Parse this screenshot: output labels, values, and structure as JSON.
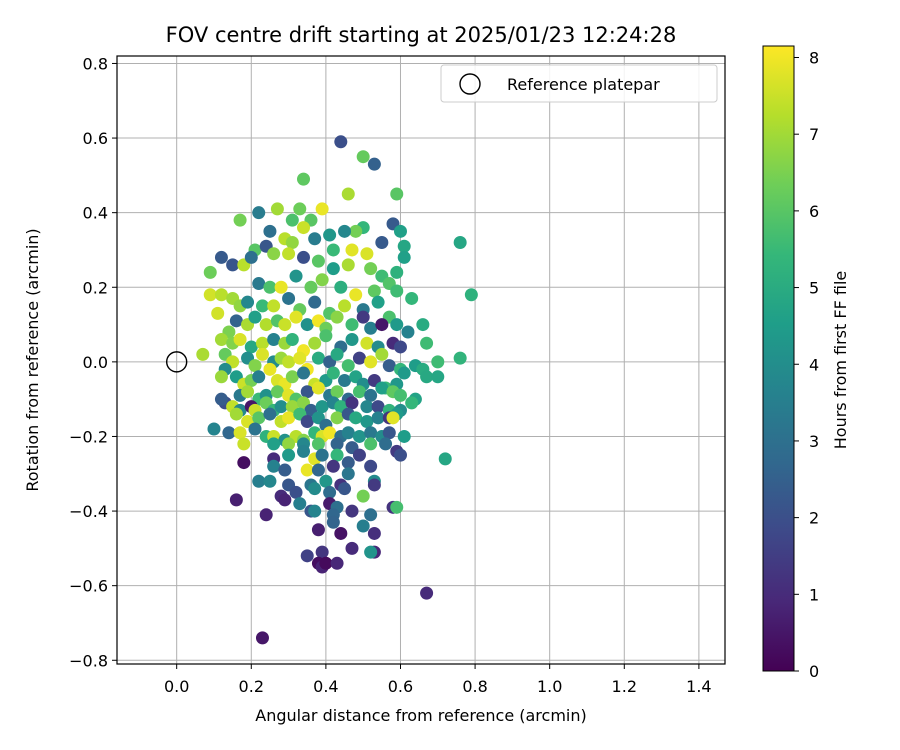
{
  "chart_data": {
    "type": "scatter",
    "title": "FOV centre drift starting at 2025/01/23 12:24:28",
    "xlabel": "Angular distance from reference (arcmin)",
    "ylabel": "Rotation from reference (arcmin)",
    "xlim": [
      -0.16,
      1.47
    ],
    "ylim": [
      -0.81,
      0.82
    ],
    "xticks": [
      "0.0",
      "0.2",
      "0.4",
      "0.6",
      "0.8",
      "1.0",
      "1.2",
      "1.4"
    ],
    "xtick_values": [
      0.0,
      0.2,
      0.4,
      0.6,
      0.8,
      1.0,
      1.2,
      1.4
    ],
    "yticks": [
      "0.8",
      "0.6",
      "0.4",
      "0.2",
      "0.0",
      "−0.2",
      "−0.4",
      "−0.6",
      "−0.8"
    ],
    "ytick_values": [
      0.8,
      0.6,
      0.4,
      0.2,
      0.0,
      -0.2,
      -0.4,
      -0.6,
      -0.8
    ],
    "grid": true,
    "legend": {
      "placement": "upper-right",
      "entries": [
        {
          "label": "Reference platepar",
          "marker": "open-circle",
          "x": 0.0,
          "y": 0.0
        }
      ]
    },
    "colorbar": {
      "label": "Hours from first FF file",
      "colormap": "viridis",
      "range": [
        0,
        8.15
      ],
      "ticks": [
        "0",
        "1",
        "2",
        "3",
        "4",
        "5",
        "6",
        "7",
        "8"
      ],
      "tick_values": [
        0,
        1,
        2,
        3,
        4,
        5,
        6,
        7,
        8
      ]
    },
    "colors": {
      "viridis_stops": [
        "#440154",
        "#482878",
        "#3e4989",
        "#31688e",
        "#26828e",
        "#1f9e89",
        "#35b779",
        "#6ece58",
        "#b5de2b",
        "#fde725"
      ],
      "grid": "#b0b0b0",
      "axes": "#000000"
    },
    "points": [
      [
        0.44,
        0.59,
        2.0
      ],
      [
        0.5,
        0.55,
        6.2
      ],
      [
        0.53,
        0.53,
        2.5
      ],
      [
        0.46,
        0.45,
        7.1
      ],
      [
        0.59,
        0.45,
        6.0
      ],
      [
        0.34,
        0.49,
        6.1
      ],
      [
        0.22,
        0.4,
        3.4
      ],
      [
        0.27,
        0.41,
        7.0
      ],
      [
        0.33,
        0.41,
        6.3
      ],
      [
        0.39,
        0.41,
        7.9
      ],
      [
        0.36,
        0.38,
        6.0
      ],
      [
        0.31,
        0.38,
        5.8
      ],
      [
        0.17,
        0.38,
        6.4
      ],
      [
        0.58,
        0.37,
        2.3
      ],
      [
        0.5,
        0.36,
        5.4
      ],
      [
        0.48,
        0.35,
        6.4
      ],
      [
        0.45,
        0.35,
        3.8
      ],
      [
        0.34,
        0.36,
        7.5
      ],
      [
        0.41,
        0.34,
        4.3
      ],
      [
        0.6,
        0.35,
        4.6
      ],
      [
        0.21,
        0.3,
        6.0
      ],
      [
        0.24,
        0.31,
        2.2
      ],
      [
        0.25,
        0.35,
        3.0
      ],
      [
        0.29,
        0.33,
        7.3
      ],
      [
        0.31,
        0.32,
        6.8
      ],
      [
        0.37,
        0.33,
        3.4
      ],
      [
        0.42,
        0.3,
        5.5
      ],
      [
        0.47,
        0.3,
        7.8
      ],
      [
        0.51,
        0.29,
        7.7
      ],
      [
        0.55,
        0.32,
        2.3
      ],
      [
        0.61,
        0.31,
        4.8
      ],
      [
        0.12,
        0.28,
        2.3
      ],
      [
        0.09,
        0.24,
        6.3
      ],
      [
        0.15,
        0.26,
        2.2
      ],
      [
        0.18,
        0.26,
        7.3
      ],
      [
        0.2,
        0.28,
        3.0
      ],
      [
        0.26,
        0.29,
        6.7
      ],
      [
        0.3,
        0.29,
        7.4
      ],
      [
        0.34,
        0.28,
        2.0
      ],
      [
        0.38,
        0.27,
        6.0
      ],
      [
        0.42,
        0.25,
        4.5
      ],
      [
        0.46,
        0.26,
        7.1
      ],
      [
        0.52,
        0.25,
        6.4
      ],
      [
        0.55,
        0.23,
        5.6
      ],
      [
        0.59,
        0.24,
        5.2
      ],
      [
        0.61,
        0.28,
        4.6
      ],
      [
        0.76,
        0.32,
        4.8
      ],
      [
        0.22,
        0.21,
        3.3
      ],
      [
        0.25,
        0.2,
        5.8
      ],
      [
        0.28,
        0.2,
        7.9
      ],
      [
        0.32,
        0.23,
        4.2
      ],
      [
        0.36,
        0.2,
        6.2
      ],
      [
        0.39,
        0.22,
        6.6
      ],
      [
        0.44,
        0.2,
        5.1
      ],
      [
        0.48,
        0.18,
        7.9
      ],
      [
        0.53,
        0.19,
        6.1
      ],
      [
        0.57,
        0.21,
        5.9
      ],
      [
        0.59,
        0.19,
        5.6
      ],
      [
        0.63,
        0.17,
        5.4
      ],
      [
        0.79,
        0.18,
        5.2
      ],
      [
        0.09,
        0.18,
        7.6
      ],
      [
        0.12,
        0.18,
        7.3
      ],
      [
        0.15,
        0.17,
        7.0
      ],
      [
        0.17,
        0.15,
        6.8
      ],
      [
        0.19,
        0.16,
        3.8
      ],
      [
        0.23,
        0.15,
        5.5
      ],
      [
        0.26,
        0.15,
        7.4
      ],
      [
        0.3,
        0.17,
        3.1
      ],
      [
        0.33,
        0.14,
        6.2
      ],
      [
        0.37,
        0.16,
        2.8
      ],
      [
        0.41,
        0.13,
        5.9
      ],
      [
        0.45,
        0.15,
        7.3
      ],
      [
        0.5,
        0.14,
        3.3
      ],
      [
        0.54,
        0.16,
        4.6
      ],
      [
        0.57,
        0.12,
        5.8
      ],
      [
        0.11,
        0.13,
        7.6
      ],
      [
        0.14,
        0.08,
        6.5
      ],
      [
        0.16,
        0.11,
        2.6
      ],
      [
        0.19,
        0.1,
        7.1
      ],
      [
        0.21,
        0.12,
        4.6
      ],
      [
        0.24,
        0.1,
        7.2
      ],
      [
        0.27,
        0.11,
        5.9
      ],
      [
        0.29,
        0.1,
        7.5
      ],
      [
        0.32,
        0.12,
        7.8
      ],
      [
        0.35,
        0.1,
        4.1
      ],
      [
        0.38,
        0.11,
        8.0
      ],
      [
        0.4,
        0.09,
        6.3
      ],
      [
        0.43,
        0.12,
        6.7
      ],
      [
        0.47,
        0.1,
        5.6
      ],
      [
        0.5,
        0.12,
        1.4
      ],
      [
        0.52,
        0.09,
        3.5
      ],
      [
        0.55,
        0.1,
        0.5
      ],
      [
        0.59,
        0.1,
        4.4
      ],
      [
        0.62,
        0.08,
        3.6
      ],
      [
        0.66,
        0.1,
        5.0
      ],
      [
        0.12,
        0.06,
        7.0
      ],
      [
        0.15,
        0.05,
        6.6
      ],
      [
        0.17,
        0.06,
        7.7
      ],
      [
        0.2,
        0.04,
        4.9
      ],
      [
        0.23,
        0.05,
        7.3
      ],
      [
        0.26,
        0.06,
        3.6
      ],
      [
        0.29,
        0.05,
        6.9
      ],
      [
        0.31,
        0.06,
        5.3
      ],
      [
        0.34,
        0.03,
        8.0
      ],
      [
        0.37,
        0.05,
        7.0
      ],
      [
        0.4,
        0.07,
        5.8
      ],
      [
        0.44,
        0.04,
        2.9
      ],
      [
        0.47,
        0.06,
        4.3
      ],
      [
        0.51,
        0.05,
        7.6
      ],
      [
        0.54,
        0.04,
        3.9
      ],
      [
        0.58,
        0.05,
        1.0
      ],
      [
        0.6,
        0.04,
        1.8
      ],
      [
        0.67,
        0.05,
        5.6
      ],
      [
        0.07,
        0.02,
        7.1
      ],
      [
        0.13,
        0.02,
        6.2
      ],
      [
        0.15,
        0.0,
        7.4
      ],
      [
        0.19,
        0.01,
        4.0
      ],
      [
        0.21,
        -0.01,
        6.6
      ],
      [
        0.23,
        0.02,
        7.7
      ],
      [
        0.26,
        0.0,
        3.9
      ],
      [
        0.28,
        0.01,
        6.9
      ],
      [
        0.3,
        0.0,
        7.4
      ],
      [
        0.33,
        0.01,
        7.8
      ],
      [
        0.35,
        -0.02,
        8.0
      ],
      [
        0.38,
        0.01,
        5.0
      ],
      [
        0.41,
        0.0,
        2.5
      ],
      [
        0.43,
        0.02,
        4.9
      ],
      [
        0.46,
        -0.01,
        5.7
      ],
      [
        0.49,
        0.01,
        1.6
      ],
      [
        0.52,
        0.0,
        7.8
      ],
      [
        0.55,
        0.02,
        7.0
      ],
      [
        0.57,
        -0.01,
        2.4
      ],
      [
        0.6,
        -0.02,
        5.4
      ],
      [
        0.64,
        -0.01,
        4.5
      ],
      [
        0.66,
        -0.02,
        5.0
      ],
      [
        0.7,
        0.0,
        5.6
      ],
      [
        0.76,
        0.01,
        5.3
      ],
      [
        0.13,
        -0.02,
        3.9
      ],
      [
        0.16,
        -0.04,
        4.5
      ],
      [
        0.18,
        -0.06,
        7.5
      ],
      [
        0.2,
        -0.05,
        6.4
      ],
      [
        0.22,
        -0.04,
        3.5
      ],
      [
        0.25,
        -0.02,
        7.9
      ],
      [
        0.27,
        -0.05,
        7.7
      ],
      [
        0.29,
        -0.06,
        7.9
      ],
      [
        0.31,
        -0.04,
        6.5
      ],
      [
        0.34,
        -0.03,
        3.2
      ],
      [
        0.37,
        -0.06,
        7.5
      ],
      [
        0.4,
        -0.05,
        4.4
      ],
      [
        0.42,
        -0.03,
        5.3
      ],
      [
        0.45,
        -0.05,
        3.3
      ],
      [
        0.48,
        -0.04,
        4.7
      ],
      [
        0.5,
        -0.06,
        4.0
      ],
      [
        0.53,
        -0.05,
        1.4
      ],
      [
        0.56,
        -0.07,
        5.5
      ],
      [
        0.59,
        -0.06,
        4.3
      ],
      [
        0.61,
        -0.03,
        4.4
      ],
      [
        0.67,
        -0.04,
        4.9
      ],
      [
        0.7,
        -0.04,
        4.8
      ],
      [
        0.12,
        -0.04,
        6.9
      ],
      [
        0.17,
        -0.09,
        3.3
      ],
      [
        0.19,
        -0.08,
        7.0
      ],
      [
        0.22,
        -0.1,
        5.5
      ],
      [
        0.24,
        -0.09,
        4.1
      ],
      [
        0.27,
        -0.08,
        6.2
      ],
      [
        0.3,
        -0.09,
        7.8
      ],
      [
        0.32,
        -0.1,
        5.9
      ],
      [
        0.35,
        -0.08,
        2.2
      ],
      [
        0.38,
        -0.07,
        7.8
      ],
      [
        0.41,
        -0.09,
        3.3
      ],
      [
        0.43,
        -0.08,
        6.3
      ],
      [
        0.46,
        -0.1,
        2.8
      ],
      [
        0.49,
        -0.08,
        5.7
      ],
      [
        0.52,
        -0.09,
        3.1
      ],
      [
        0.55,
        -0.07,
        4.6
      ],
      [
        0.58,
        -0.08,
        6.1
      ],
      [
        0.6,
        -0.09,
        5.7
      ],
      [
        0.64,
        -0.1,
        4.7
      ],
      [
        0.13,
        -0.11,
        2.0
      ],
      [
        0.15,
        -0.12,
        7.4
      ],
      [
        0.17,
        -0.13,
        3.8
      ],
      [
        0.2,
        -0.12,
        0.5
      ],
      [
        0.21,
        -0.13,
        7.5
      ],
      [
        0.24,
        -0.11,
        6.3
      ],
      [
        0.26,
        -0.13,
        5.4
      ],
      [
        0.28,
        -0.12,
        4.0
      ],
      [
        0.31,
        -0.12,
        6.9
      ],
      [
        0.34,
        -0.11,
        6.7
      ],
      [
        0.36,
        -0.13,
        2.5
      ],
      [
        0.39,
        -0.12,
        4.3
      ],
      [
        0.42,
        -0.11,
        3.7
      ],
      [
        0.44,
        -0.12,
        5.2
      ],
      [
        0.47,
        -0.11,
        1.2
      ],
      [
        0.51,
        -0.12,
        3.8
      ],
      [
        0.54,
        -0.12,
        1.8
      ],
      [
        0.57,
        -0.13,
        5.3
      ],
      [
        0.6,
        -0.13,
        4.0
      ],
      [
        0.63,
        -0.11,
        5.4
      ],
      [
        0.12,
        -0.1,
        2.4
      ],
      [
        0.16,
        -0.14,
        7.0
      ],
      [
        0.19,
        -0.16,
        7.7
      ],
      [
        0.22,
        -0.15,
        6.0
      ],
      [
        0.25,
        -0.14,
        3.0
      ],
      [
        0.28,
        -0.16,
        7.4
      ],
      [
        0.3,
        -0.15,
        7.9
      ],
      [
        0.33,
        -0.14,
        5.6
      ],
      [
        0.35,
        -0.16,
        1.8
      ],
      [
        0.38,
        -0.15,
        4.2
      ],
      [
        0.4,
        -0.17,
        3.0
      ],
      [
        0.43,
        -0.15,
        6.6
      ],
      [
        0.46,
        -0.14,
        2.2
      ],
      [
        0.48,
        -0.15,
        4.9
      ],
      [
        0.51,
        -0.16,
        4.3
      ],
      [
        0.54,
        -0.15,
        3.6
      ],
      [
        0.57,
        -0.15,
        1.3
      ],
      [
        0.59,
        -0.14,
        4.4
      ],
      [
        0.58,
        -0.15,
        7.8
      ],
      [
        0.1,
        -0.18,
        3.7
      ],
      [
        0.14,
        -0.19,
        2.7
      ],
      [
        0.17,
        -0.19,
        7.7
      ],
      [
        0.21,
        -0.18,
        3.1
      ],
      [
        0.24,
        -0.2,
        5.2
      ],
      [
        0.26,
        -0.2,
        7.5
      ],
      [
        0.29,
        -0.21,
        4.1
      ],
      [
        0.32,
        -0.2,
        7.3
      ],
      [
        0.34,
        -0.21,
        6.6
      ],
      [
        0.37,
        -0.19,
        5.4
      ],
      [
        0.39,
        -0.2,
        7.7
      ],
      [
        0.41,
        -0.19,
        8.0
      ],
      [
        0.44,
        -0.2,
        3.0
      ],
      [
        0.46,
        -0.19,
        3.6
      ],
      [
        0.49,
        -0.2,
        4.2
      ],
      [
        0.52,
        -0.19,
        3.3
      ],
      [
        0.55,
        -0.2,
        3.9
      ],
      [
        0.57,
        -0.19,
        2.2
      ],
      [
        0.61,
        -0.2,
        4.5
      ],
      [
        0.18,
        -0.22,
        7.5
      ],
      [
        0.26,
        -0.22,
        4.6
      ],
      [
        0.3,
        -0.22,
        6.8
      ],
      [
        0.34,
        -0.22,
        3.8
      ],
      [
        0.38,
        -0.22,
        5.9
      ],
      [
        0.43,
        -0.22,
        2.6
      ],
      [
        0.47,
        -0.23,
        2.4
      ],
      [
        0.52,
        -0.22,
        5.8
      ],
      [
        0.56,
        -0.22,
        2.9
      ],
      [
        0.59,
        -0.24,
        1.4
      ],
      [
        0.6,
        -0.25,
        2.0
      ],
      [
        0.18,
        -0.27,
        0.3
      ],
      [
        0.26,
        -0.26,
        1.0
      ],
      [
        0.3,
        -0.25,
        4.4
      ],
      [
        0.34,
        -0.24,
        3.6
      ],
      [
        0.37,
        -0.26,
        7.8
      ],
      [
        0.39,
        -0.25,
        3.1
      ],
      [
        0.43,
        -0.25,
        5.4
      ],
      [
        0.46,
        -0.27,
        2.4
      ],
      [
        0.49,
        -0.25,
        1.6
      ],
      [
        0.52,
        -0.28,
        1.8
      ],
      [
        0.72,
        -0.26,
        4.8
      ],
      [
        0.26,
        -0.28,
        3.6
      ],
      [
        0.29,
        -0.29,
        2.4
      ],
      [
        0.35,
        -0.29,
        7.9
      ],
      [
        0.38,
        -0.29,
        2.7
      ],
      [
        0.42,
        -0.28,
        1.3
      ],
      [
        0.46,
        -0.3,
        3.2
      ],
      [
        0.53,
        -0.32,
        3.9
      ],
      [
        0.22,
        -0.32,
        3.5
      ],
      [
        0.25,
        -0.32,
        3.8
      ],
      [
        0.3,
        -0.33,
        2.2
      ],
      [
        0.36,
        -0.33,
        3.2
      ],
      [
        0.4,
        -0.32,
        4.3
      ],
      [
        0.44,
        -0.33,
        1.2
      ],
      [
        0.53,
        -0.33,
        1.4
      ],
      [
        0.16,
        -0.37,
        0.7
      ],
      [
        0.28,
        -0.36,
        1.0
      ],
      [
        0.29,
        -0.37,
        0.8
      ],
      [
        0.32,
        -0.35,
        2.0
      ],
      [
        0.37,
        -0.34,
        3.9
      ],
      [
        0.41,
        -0.35,
        2.9
      ],
      [
        0.45,
        -0.34,
        2.2
      ],
      [
        0.5,
        -0.36,
        6.4
      ],
      [
        0.33,
        -0.38,
        3.5
      ],
      [
        0.36,
        -0.4,
        2.2
      ],
      [
        0.41,
        -0.38,
        0.6
      ],
      [
        0.43,
        -0.39,
        3.0
      ],
      [
        0.58,
        -0.39,
        1.2
      ],
      [
        0.59,
        -0.39,
        5.7
      ],
      [
        0.24,
        -0.41,
        0.8
      ],
      [
        0.37,
        -0.4,
        3.7
      ],
      [
        0.42,
        -0.41,
        2.7
      ],
      [
        0.47,
        -0.4,
        1.3
      ],
      [
        0.52,
        -0.41,
        3.0
      ],
      [
        0.38,
        -0.45,
        0.7
      ],
      [
        0.42,
        -0.43,
        2.6
      ],
      [
        0.44,
        -0.46,
        0.4
      ],
      [
        0.5,
        -0.44,
        3.5
      ],
      [
        0.53,
        -0.46,
        1.1
      ],
      [
        0.35,
        -0.52,
        1.6
      ],
      [
        0.39,
        -0.51,
        1.3
      ],
      [
        0.47,
        -0.5,
        1.0
      ],
      [
        0.53,
        -0.51,
        0.9
      ],
      [
        0.52,
        -0.51,
        4.2
      ],
      [
        0.38,
        -0.54,
        0.3
      ],
      [
        0.39,
        -0.55,
        0.8
      ],
      [
        0.4,
        -0.54,
        0.2
      ],
      [
        0.43,
        -0.54,
        0.9
      ],
      [
        0.67,
        -0.62,
        1.0
      ],
      [
        0.23,
        -0.74,
        0.5
      ]
    ]
  }
}
